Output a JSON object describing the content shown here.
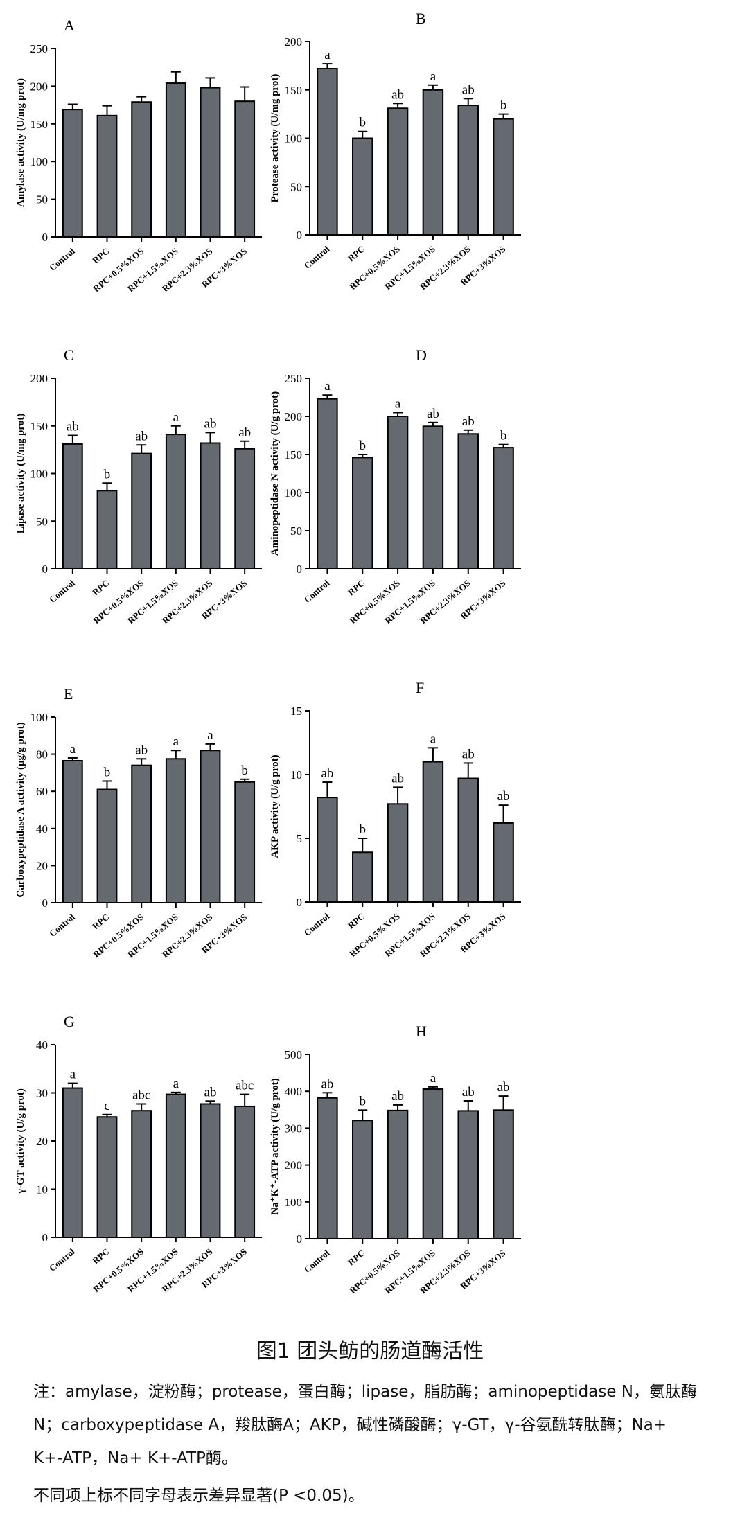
{
  "caption": {
    "title": "图1 团头鲂的肠道酶活性",
    "note_line1": "注：amylase，淀粉酶；protease，蛋白酶；lipase，脂肪酶；aminopeptidase N，氨肽酶",
    "note_line2": "N；carboxypeptidase     A，羧肽酶A；AKP，碱性磷酸酶；γ-GT，γ-谷氨酰转肽酶；Na+",
    "note_line3": "K+-ATP，Na+ K+-ATP酶。",
    "note_line4": "不同项上标不同字母表示差异显著(P <0.05)。"
  },
  "chart_data": [
    {
      "panel": "A",
      "type": "bar",
      "ylabel": "Amylase activity (U/mg prot)",
      "ylim": [
        0,
        250
      ],
      "ticks": [
        0,
        50,
        100,
        150,
        200,
        250
      ],
      "categories": [
        "Control",
        "RPC",
        "RPC+0.5%XOS",
        "RPC+1.5%XOS",
        "RPC+2.3%XOS",
        "RPC+3%XOS"
      ],
      "values": [
        169,
        161,
        179,
        204,
        198,
        180
      ],
      "errors": [
        7,
        13,
        7,
        15,
        13,
        19
      ],
      "letters": [
        "",
        "",
        "",
        "",
        "",
        ""
      ]
    },
    {
      "panel": "B",
      "type": "bar",
      "ylabel": "Protease activity (U/mg prot)",
      "ylim": [
        0,
        200
      ],
      "ticks": [
        0,
        50,
        100,
        150,
        200
      ],
      "categories": [
        "Control",
        "RPC",
        "RPC+0.5%XOS",
        "RPC+1.5%XOS",
        "RPC+2.3%XOS",
        "RPC+3%XOS"
      ],
      "values": [
        172,
        100,
        131,
        150,
        134,
        120
      ],
      "errors": [
        5,
        7,
        5,
        5,
        7,
        5
      ],
      "letters": [
        "a",
        "b",
        "ab",
        "a",
        "ab",
        "b"
      ]
    },
    {
      "panel": "C",
      "type": "bar",
      "ylabel": "Lipase activity (U/mg prot)",
      "ylim": [
        0,
        200
      ],
      "ticks": [
        0,
        50,
        100,
        150,
        200
      ],
      "categories": [
        "Control",
        "RPC",
        "RPC+0.5%XOS",
        "RPC+1.5%XOS",
        "RPC+2.3%XOS",
        "RPC+3%XOS"
      ],
      "values": [
        131,
        82,
        121,
        141,
        132,
        126
      ],
      "errors": [
        9,
        8,
        9,
        9,
        11,
        8
      ],
      "letters": [
        "ab",
        "b",
        "ab",
        "a",
        "ab",
        "ab"
      ]
    },
    {
      "panel": "D",
      "type": "bar",
      "ylabel": "Aminopeptidase N activity (U/g prot)",
      "ylim": [
        0,
        250
      ],
      "ticks": [
        0,
        50,
        100,
        150,
        200,
        250
      ],
      "categories": [
        "Control",
        "RPC",
        "RPC+0.5%XOS",
        "RPC+1.5%XOS",
        "RPC+2.3%XOS",
        "RPC+3%XOS"
      ],
      "values": [
        223,
        146,
        200,
        187,
        177,
        159
      ],
      "errors": [
        5,
        4,
        5,
        5,
        5,
        4
      ],
      "letters": [
        "a",
        "b",
        "a",
        "ab",
        "ab",
        "b"
      ]
    },
    {
      "panel": "E",
      "type": "bar",
      "ylabel": "Carboxypeptidase  A  activity (μg/g prot)",
      "ylim": [
        0,
        100
      ],
      "ticks": [
        0,
        20,
        40,
        60,
        80,
        100
      ],
      "categories": [
        "Control",
        "RPC",
        "RPC+0.5%XOS",
        "RPC+1.5%XOS",
        "RPC+2.3%XOS",
        "RPC+3%XOS"
      ],
      "values": [
        76.5,
        61,
        74,
        77.5,
        82,
        65
      ],
      "errors": [
        1.5,
        4.5,
        3.5,
        4.5,
        3.5,
        1.5
      ],
      "letters": [
        "a",
        "b",
        "ab",
        "a",
        "a",
        "b"
      ]
    },
    {
      "panel": "F",
      "type": "bar",
      "ylabel": "AKP activity (U/g prot)",
      "ylim": [
        0,
        15
      ],
      "ticks": [
        0,
        5,
        10,
        15
      ],
      "categories": [
        "Control",
        "RPC",
        "RPC+0.5%XOS",
        "RPC+1.5%XOS",
        "RPC+2.3%XOS",
        "RPC+3%XOS"
      ],
      "values": [
        8.2,
        3.9,
        7.7,
        11.0,
        9.7,
        6.2
      ],
      "errors": [
        1.2,
        1.1,
        1.3,
        1.1,
        1.2,
        1.4
      ],
      "letters": [
        "ab",
        "b",
        "ab",
        "a",
        "ab",
        "ab"
      ]
    },
    {
      "panel": "G",
      "type": "bar",
      "ylabel": "γ-GT activity (U/g prot)",
      "ylim": [
        0,
        40
      ],
      "ticks": [
        0,
        10,
        20,
        30,
        40
      ],
      "categories": [
        "Control",
        "RPC",
        "RPC+0.5%XOS",
        "RPC+1.5%XOS",
        "RPC+2.3%XOS",
        "RPC+3%XOS"
      ],
      "values": [
        31,
        25,
        26.3,
        29.7,
        27.7,
        27.2
      ],
      "errors": [
        1.0,
        0.5,
        1.4,
        0.4,
        0.6,
        2.5
      ],
      "letters": [
        "a",
        "c",
        "abc",
        "a",
        "ab",
        "abc"
      ]
    },
    {
      "panel": "H",
      "type": "bar",
      "ylabel": "Na⁺K⁺-ATP activity (U/g prot)",
      "ylim": [
        0,
        500
      ],
      "ticks": [
        0,
        100,
        200,
        300,
        400,
        500
      ],
      "categories": [
        "Control",
        "RPC",
        "RPC+0.5%XOS",
        "RPC+1.5%XOS",
        "RPC+2.3%XOS",
        "RPC+3%XOS"
      ],
      "values": [
        382,
        321,
        348,
        406,
        347,
        349
      ],
      "errors": [
        14,
        28,
        15,
        6,
        27,
        38
      ],
      "letters": [
        "ab",
        "b",
        "ab",
        "a",
        "ab",
        "ab"
      ]
    }
  ]
}
